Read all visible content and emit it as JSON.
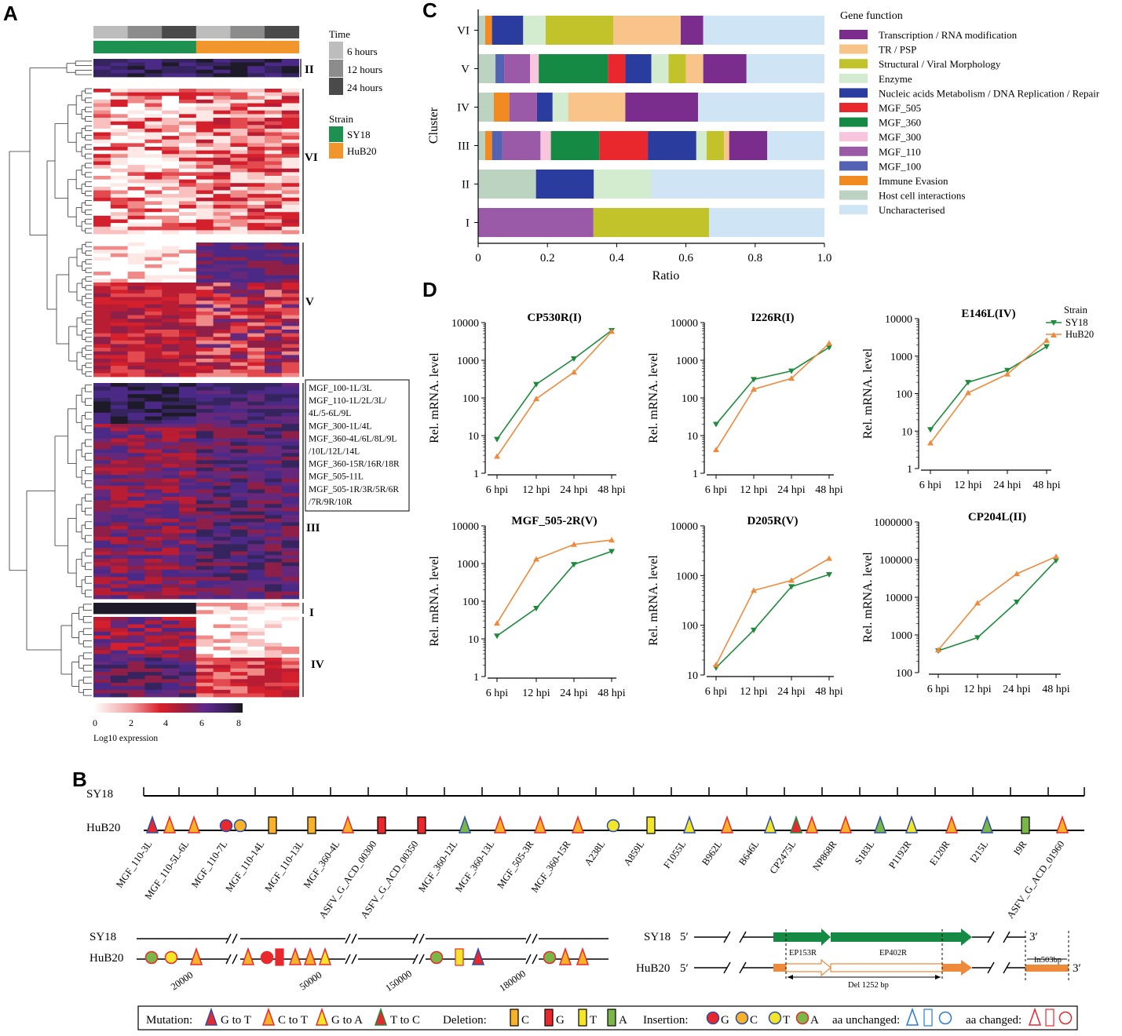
{
  "panels": {
    "A": "A",
    "B": "B",
    "C": "C",
    "D": "D"
  },
  "heatmap": {
    "legend_time_title": "Time",
    "time_levels": [
      "6  hours",
      "12 hours",
      "24 hours"
    ],
    "time_colors": [
      "#bdbdbd",
      "#8c8c8c",
      "#4a4a4a"
    ],
    "legend_strain_title": "Strain",
    "strains": [
      "SY18",
      "HuB20"
    ],
    "strain_colors": [
      "#1e9150",
      "#f0962d"
    ],
    "clusters": [
      "II",
      "VI",
      "V",
      "III",
      "I",
      "IV"
    ],
    "annotation_box": [
      "MGF_100-1L/3L",
      "MGF_110-1L/2L/3L/",
      "4L/5-6L/9L",
      "MGF_300-1L/4L",
      "MGF_360-4L/6L/8L/9L",
      "/10L/12L/14L",
      "MGF_360-15R/16R/18R",
      "MGF_505-11L",
      "MGF_505-1R/3R/5R/6R",
      "/7R/9R/10R"
    ],
    "scale_ticks": [
      "0",
      "2",
      "4",
      "6",
      "8"
    ],
    "scale_label": "Log10 expression"
  },
  "chart_data": [
    {
      "type": "bar",
      "orientation": "horizontal-stacked",
      "panel": "C",
      "ylabel": "Cluster",
      "xlabel": "Ratio",
      "xlim": [
        0,
        1
      ],
      "xticks": [
        "0",
        "0.2",
        "0.4",
        "0.6",
        "0.8",
        "1.0"
      ],
      "legend_title": "Gene function",
      "legend": [
        {
          "name": "Transcription / RNA modification",
          "color": "#7b2d8e"
        },
        {
          "name": "TR / PSP",
          "color": "#f9c48a"
        },
        {
          "name": "Structural / Viral Morphology",
          "color": "#c2c22a"
        },
        {
          "name": "Enzyme",
          "color": "#d3ebcf"
        },
        {
          "name": "Nucleic acids Metabolism / DNA Replication / Repair",
          "color": "#2a3d9e"
        },
        {
          "name": "MGF_505",
          "color": "#e8282d"
        },
        {
          "name": "MGF_360",
          "color": "#158a45"
        },
        {
          "name": "MGF_300",
          "color": "#f7c5dc"
        },
        {
          "name": "MGF_110",
          "color": "#9b5aa8"
        },
        {
          "name": "MGF_100",
          "color": "#5462b3"
        },
        {
          "name": "Immune Evasion",
          "color": "#f28a22"
        },
        {
          "name": "Host cell interactions",
          "color": "#bdd3c2"
        },
        {
          "name": "Uncharacterised",
          "color": "#cfe4f5"
        }
      ],
      "rows": [
        {
          "cluster": "VI",
          "segments": [
            [
              "Host cell interactions",
              0.02
            ],
            [
              "Immune Evasion",
              0.02
            ],
            [
              "Nucleic acids Metabolism / DNA Replication / Repair",
              0.09
            ],
            [
              "Enzyme",
              0.065
            ],
            [
              "Structural / Viral Morphology",
              0.195
            ],
            [
              "TR / PSP",
              0.195
            ],
            [
              "Transcription / RNA modification",
              0.065
            ],
            [
              "Uncharacterised",
              0.35
            ]
          ]
        },
        {
          "cluster": "V",
          "segments": [
            [
              "Host cell interactions",
              0.05
            ],
            [
              "MGF_100",
              0.025
            ],
            [
              "MGF_110",
              0.075
            ],
            [
              "MGF_300",
              0.025
            ],
            [
              "MGF_360",
              0.2
            ],
            [
              "MGF_505",
              0.05
            ],
            [
              "Nucleic acids Metabolism / DNA Replication / Repair",
              0.075
            ],
            [
              "Enzyme",
              0.05
            ],
            [
              "Structural / Viral Morphology",
              0.05
            ],
            [
              "TR / PSP",
              0.05
            ],
            [
              "Transcription / RNA modification",
              0.125
            ],
            [
              "Uncharacterised",
              0.225
            ]
          ]
        },
        {
          "cluster": "IV",
          "segments": [
            [
              "Host cell interactions",
              0.045
            ],
            [
              "Immune Evasion",
              0.045
            ],
            [
              "MGF_110",
              0.08
            ],
            [
              "Nucleic acids Metabolism / DNA Replication / Repair",
              0.045
            ],
            [
              "Enzyme",
              0.045
            ],
            [
              "TR / PSP",
              0.165
            ],
            [
              "Transcription / RNA modification",
              0.21
            ],
            [
              "Uncharacterised",
              0.365
            ]
          ]
        },
        {
          "cluster": "III",
          "segments": [
            [
              "Host cell interactions",
              0.02
            ],
            [
              "Immune Evasion",
              0.02
            ],
            [
              "MGF_100",
              0.03
            ],
            [
              "MGF_110",
              0.11
            ],
            [
              "MGF_300",
              0.03
            ],
            [
              "MGF_360",
              0.14
            ],
            [
              "MGF_505",
              0.14
            ],
            [
              "Nucleic acids Metabolism / DNA Replication / Repair",
              0.14
            ],
            [
              "Enzyme",
              0.03
            ],
            [
              "Structural / Viral Morphology",
              0.05
            ],
            [
              "TR / PSP",
              0.015
            ],
            [
              "Transcription / RNA modification",
              0.11
            ],
            [
              "Uncharacterised",
              0.165
            ]
          ]
        },
        {
          "cluster": "II",
          "segments": [
            [
              "Host cell interactions",
              0.167
            ],
            [
              "Nucleic acids Metabolism / DNA Replication / Repair",
              0.167
            ],
            [
              "Enzyme",
              0.166
            ],
            [
              "Uncharacterised",
              0.5
            ]
          ]
        },
        {
          "cluster": "I",
          "segments": [
            [
              "MGF_110",
              0.333
            ],
            [
              "Structural / Viral Morphology",
              0.334
            ],
            [
              "Uncharacterised",
              0.333
            ]
          ]
        }
      ]
    },
    {
      "type": "line",
      "panel": "D",
      "legend_title": "Strain",
      "series_names": [
        "SY18",
        "HuB20"
      ],
      "series_colors": [
        "#1e8a3c",
        "#ee8a3c"
      ],
      "x": [
        "6 hpi",
        "12 hpi",
        "24 hpi",
        "48 hpi"
      ],
      "ylabel": "Rel. mRNA. level",
      "plots": [
        {
          "title": "CP530R(I)",
          "ylim": [
            1,
            10000
          ],
          "yticks": [
            "1",
            "10",
            "100",
            "1000",
            "10000"
          ],
          "series": [
            {
              "name": "SY18",
              "values": [
                8,
                230,
                1100,
                6200
              ]
            },
            {
              "name": "HuB20",
              "values": [
                2.8,
                95,
                480,
                5800
              ]
            }
          ]
        },
        {
          "title": "I226R(I)",
          "ylim": [
            1,
            10000
          ],
          "yticks": [
            "1",
            "10",
            "100",
            "1000",
            "10000"
          ],
          "series": [
            {
              "name": "SY18",
              "values": [
                20,
                310,
                520,
                2200
              ]
            },
            {
              "name": "HuB20",
              "values": [
                4.2,
                170,
                330,
                2800
              ]
            }
          ]
        },
        {
          "title": "E146L(IV)",
          "ylim": [
            1,
            10000
          ],
          "yticks": [
            "1",
            "10",
            "100",
            "1000",
            "10000"
          ],
          "series": [
            {
              "name": "SY18",
              "values": [
                11,
                200,
                420,
                1800
              ]
            },
            {
              "name": "HuB20",
              "values": [
                4.8,
                105,
                330,
                2600
              ]
            }
          ]
        },
        {
          "title": "MGF_505-2R(V)",
          "ylim": [
            1,
            10000
          ],
          "yticks": [
            "1",
            "10",
            "100",
            "1000",
            "10000"
          ],
          "series": [
            {
              "name": "SY18",
              "values": [
                12,
                65,
                950,
                2100
              ]
            },
            {
              "name": "HuB20",
              "values": [
                26,
                1300,
                3200,
                4200
              ]
            }
          ]
        },
        {
          "title": "D205R(V)",
          "ylim": [
            10,
            10000
          ],
          "yticks": [
            "10",
            "100",
            "1000",
            "10000"
          ],
          "series": [
            {
              "name": "SY18",
              "values": [
                14,
                80,
                600,
                1050
              ]
            },
            {
              "name": "HuB20",
              "values": [
                16,
                500,
                800,
                2200
              ]
            }
          ]
        },
        {
          "title": "CP204L(II)",
          "ylim": [
            100,
            1000000
          ],
          "yticks": [
            "100",
            "1000",
            "10000",
            "100000",
            "1000000"
          ],
          "series": [
            {
              "name": "SY18",
              "values": [
                380,
                850,
                7500,
                95000
              ]
            },
            {
              "name": "HuB20",
              "values": [
                400,
                7000,
                42000,
                120000
              ]
            }
          ]
        }
      ]
    }
  ],
  "panelB": {
    "strain_top": "SY18",
    "strain_bottom": "HuB20",
    "genes": [
      "MGF_110-3L",
      "MGF_110-5L-6L",
      "MGF_110-7L",
      "MGF_110-14L",
      "MGF_110-13L",
      "MGF_360-4L",
      "ASFV_G_ACD_00300",
      "ASFV_G_ACD_00350",
      "MGF_360-12L",
      "MGF_360-13L",
      "MGF_505-3R",
      "MGF_360-15R",
      "A238L",
      "A859L",
      "F1055L",
      "B962L",
      "B646L",
      "CP2475L",
      "NP868R",
      "S183L",
      "P1192R",
      "E120R",
      "I215L",
      "I9R",
      "ASFV_G_ACD_01960"
    ],
    "positions": [
      "20000",
      "50000",
      "150000",
      "180000"
    ],
    "five_prime": "5′",
    "three_prime": "3′",
    "ep153r": "EP153R",
    "ep402r": "EP402R",
    "deletion_label": "Del 1252 bp",
    "insertion_label": "In503bp",
    "legend": {
      "mutation": "Mutation:",
      "g_to_t": "G to T",
      "c_to_t": "C to T",
      "g_to_a": "G to A",
      "t_to_c": "T to C",
      "deletion": "Deletion:",
      "del_c": "C",
      "del_g": "G",
      "del_t": "T",
      "del_a": "A",
      "insertion": "Insertion:",
      "ins_g": "G",
      "ins_c": "C",
      "ins_t": "T",
      "ins_a": "A",
      "aa_unchanged": "aa unchanged:",
      "aa_changed": "aa changed:"
    }
  }
}
